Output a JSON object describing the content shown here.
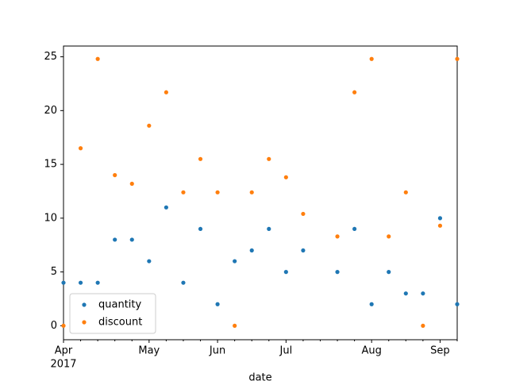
{
  "chart_data": {
    "type": "scatter",
    "xlabel": "date",
    "x_year_label": "2017",
    "categories": [
      "Apr",
      null,
      null,
      null,
      null,
      "May",
      null,
      null,
      null,
      "Jun",
      null,
      null,
      null,
      "Jul",
      null,
      null,
      null,
      null,
      "Aug",
      null,
      null,
      null,
      "Sep",
      null
    ],
    "series": [
      {
        "name": "quantity",
        "color": "#1f77b4",
        "values": [
          4,
          4,
          4,
          8,
          8,
          6,
          11,
          4,
          9,
          2,
          6,
          7,
          9,
          5,
          7,
          null,
          5,
          9,
          2,
          5,
          3,
          3,
          10,
          2
        ]
      },
      {
        "name": "discount",
        "color": "#ff7f0e",
        "values": [
          0,
          16.5,
          24.8,
          14.0,
          13.2,
          18.6,
          21.7,
          12.4,
          15.5,
          12.4,
          0,
          12.4,
          15.5,
          13.8,
          10.4,
          null,
          8.3,
          21.7,
          24.8,
          8.3,
          12.4,
          0,
          9.3,
          24.8
        ]
      }
    ],
    "ylim": [
      -1.3,
      26.0
    ],
    "yticks": [
      0,
      5,
      10,
      15,
      20,
      25
    ],
    "legend": "lower left"
  }
}
